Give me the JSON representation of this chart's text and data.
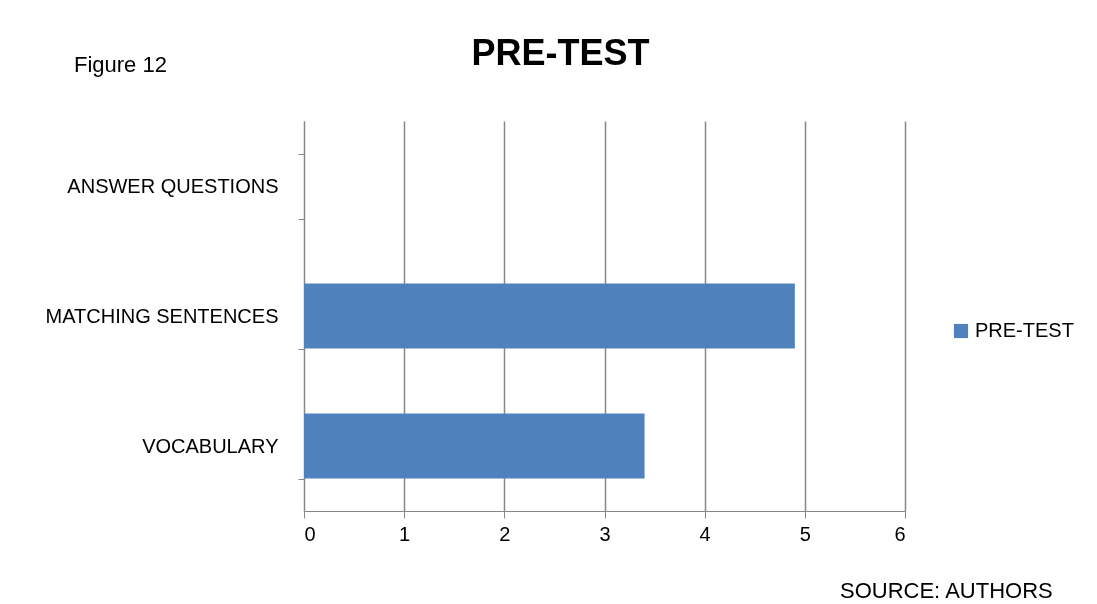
{
  "chart_data": {
    "type": "bar",
    "title": "PRE-TEST",
    "orientation": "horizontal",
    "categories": [
      "ANSWER QUESTIONS",
      "MATCHING SENTENCES",
      "VOCABULARY"
    ],
    "series": [
      {
        "name": "PRE-TEST",
        "color": "#4f81bd",
        "values": [
          0,
          4.9,
          3.4
        ]
      }
    ],
    "xlim": [
      0,
      6
    ],
    "xticks": [
      0,
      1,
      2,
      3,
      4,
      5,
      6
    ],
    "grid": "x",
    "legend": "right",
    "annotations": [
      "Figure 12",
      "SOURCE: AUTHORS"
    ]
  }
}
